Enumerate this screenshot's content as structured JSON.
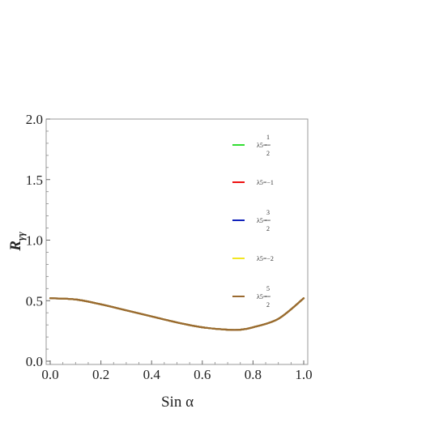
{
  "chart_data": {
    "type": "line",
    "xlabel": "Sin α",
    "ylabel": "R_γγ",
    "xlim": [
      0,
      1
    ],
    "ylim": [
      0,
      2
    ],
    "x_ticks": [
      "0.0",
      "0.2",
      "0.4",
      "0.6",
      "0.8",
      "1.0"
    ],
    "y_ticks": [
      "0.0",
      "0.5",
      "1.0",
      "1.5",
      "2.0"
    ],
    "grid": false,
    "legend_position": "right",
    "x": [
      0.0,
      0.1,
      0.2,
      0.3,
      0.4,
      0.5,
      0.6,
      0.7,
      0.75,
      0.8,
      0.9,
      1.0
    ],
    "series": [
      {
        "name": "λ5=-1/2",
        "color": "#33dd33",
        "legend_main": "λ5=−",
        "legend_num": "1",
        "legend_den": "2",
        "values": [
          0.52,
          0.51,
          0.47,
          0.42,
          0.37,
          0.32,
          0.28,
          0.26,
          0.26,
          0.28,
          0.35,
          0.52
        ]
      },
      {
        "name": "λ5=-1",
        "color": "#ee1111",
        "legend_main": "λ5=−1",
        "legend_num": "",
        "legend_den": "",
        "values": [
          0.52,
          0.51,
          0.47,
          0.42,
          0.37,
          0.32,
          0.28,
          0.26,
          0.26,
          0.28,
          0.35,
          0.52
        ]
      },
      {
        "name": "λ5=-3/2",
        "color": "#1122bb",
        "legend_main": "λ5=−",
        "legend_num": "3",
        "legend_den": "2",
        "values": [
          0.52,
          0.51,
          0.47,
          0.42,
          0.37,
          0.32,
          0.28,
          0.26,
          0.26,
          0.28,
          0.35,
          0.52
        ]
      },
      {
        "name": "λ5=-2",
        "color": "#f2e622",
        "legend_main": "λ5=−2",
        "legend_num": "",
        "legend_den": "",
        "values": [
          0.52,
          0.51,
          0.47,
          0.42,
          0.37,
          0.32,
          0.28,
          0.26,
          0.26,
          0.28,
          0.35,
          0.52
        ]
      },
      {
        "name": "λ5=-5/2",
        "color": "#9a6a30",
        "legend_main": "λ5=−",
        "legend_num": "5",
        "legend_den": "2",
        "values": [
          0.52,
          0.51,
          0.47,
          0.42,
          0.37,
          0.32,
          0.28,
          0.26,
          0.26,
          0.28,
          0.35,
          0.52
        ]
      }
    ]
  }
}
